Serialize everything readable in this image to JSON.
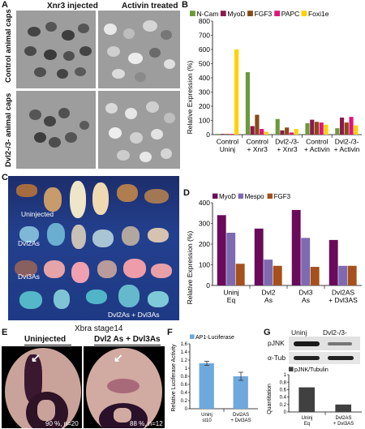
{
  "panelA": {
    "label": "A",
    "col_headers": [
      "Xnr3 injected",
      "Activin treated"
    ],
    "row_labels": [
      "Control  animal  caps",
      "Dvl2-/3- animal  caps"
    ]
  },
  "panelB": {
    "label": "B"
  },
  "panelC": {
    "label": "C",
    "labels": {
      "uninjected": "Uninjected",
      "dvl2as": "Dvl2As",
      "dvl3as": "Dvl3As",
      "combo": "Dvl2As + Dvl3As"
    }
  },
  "panelD": {
    "label": "D"
  },
  "panelE": {
    "label": "E",
    "title": "Xbra  stage14",
    "sub_left": "Uninjected",
    "sub_right": "Dvl2 As + Dvl3As",
    "stat_left": "90 %, n=20",
    "stat_right": "88 %, n=12"
  },
  "panelF": {
    "label": "F"
  },
  "panelG": {
    "label": "G",
    "blot_headers": [
      "Uninj",
      "Dvl2-/3-"
    ],
    "blot_rows": [
      "pJNK",
      "α-Tub"
    ]
  },
  "chart_data": [
    {
      "id": "B",
      "type": "bar",
      "ylabel": "Relative Expression (%)",
      "ylim": [
        0,
        800
      ],
      "yticks": [
        0,
        100,
        200,
        300,
        400,
        500,
        600,
        700,
        800
      ],
      "legend_position": "top",
      "categories": [
        "Control\nUninj",
        "Control\n+ Xnr3",
        "Dvl2-/3-\n+ Xnr3",
        "Control\n+ Activin",
        "Dvl2-/3-\n+ Activin"
      ],
      "series": [
        {
          "name": "N-Cam",
          "color": "#6b9a3a",
          "values": [
            5,
            440,
            110,
            80,
            45
          ]
        },
        {
          "name": "MyoD",
          "color": "#8b1a4a",
          "values": [
            5,
            60,
            30,
            105,
            120
          ]
        },
        {
          "name": "FGF3",
          "color": "#8a4a14",
          "values": [
            5,
            140,
            50,
            90,
            85
          ]
        },
        {
          "name": "PAPC",
          "color": "#e0147a",
          "values": [
            5,
            40,
            15,
            85,
            125
          ]
        },
        {
          "name": "Foxi1e",
          "color": "#ffd200",
          "values": [
            600,
            20,
            40,
            70,
            65
          ]
        }
      ]
    },
    {
      "id": "D",
      "type": "bar",
      "ylabel": "Relative Expression (%)",
      "ylim": [
        0,
        400
      ],
      "yticks": [
        0,
        100,
        200,
        300,
        400
      ],
      "legend_position": "top",
      "categories": [
        "Uninj\nEq",
        "Dvl2\nAs",
        "Dvl3\nAs",
        "Dvl2AS\n+ Dvl3AS"
      ],
      "series": [
        {
          "name": "MyoD",
          "color": "#6a0a5a",
          "values": [
            340,
            275,
            365,
            220
          ]
        },
        {
          "name": "Mespo",
          "color": "#7d6ab0",
          "values": [
            255,
            125,
            230,
            95
          ]
        },
        {
          "name": "FGF3",
          "color": "#a6501c",
          "values": [
            105,
            95,
            90,
            95
          ]
        }
      ]
    },
    {
      "id": "F",
      "type": "bar",
      "ylabel": "Relative Luciferase Activity",
      "ylim": [
        0,
        1.6
      ],
      "yticks": [
        0,
        0.2,
        0.4,
        0.6,
        0.8,
        1,
        1.2,
        1.4,
        1.6
      ],
      "legend_position": "top-left",
      "categories": [
        "Uninj\nst10",
        "Dvl2AS\n+ Dvl3AS"
      ],
      "series": [
        {
          "name": "AP1-Luciferase",
          "color": "#6fa8dc",
          "values": [
            1.12,
            0.8
          ],
          "errors": [
            0.05,
            0.1
          ]
        }
      ]
    },
    {
      "id": "G",
      "type": "bar",
      "ylabel": "Quantitation",
      "ylim": [
        0,
        1
      ],
      "yticks": [
        0,
        0.2,
        0.4,
        0.6,
        0.8,
        1
      ],
      "legend_position": "top",
      "categories": [
        "Uninj\nEq",
        "Dvl2AS\n+ Dvl3AS"
      ],
      "series": [
        {
          "name": "pJNK/Tubulin",
          "color": "#404040",
          "values": [
            0.66,
            0.2
          ]
        }
      ]
    }
  ]
}
